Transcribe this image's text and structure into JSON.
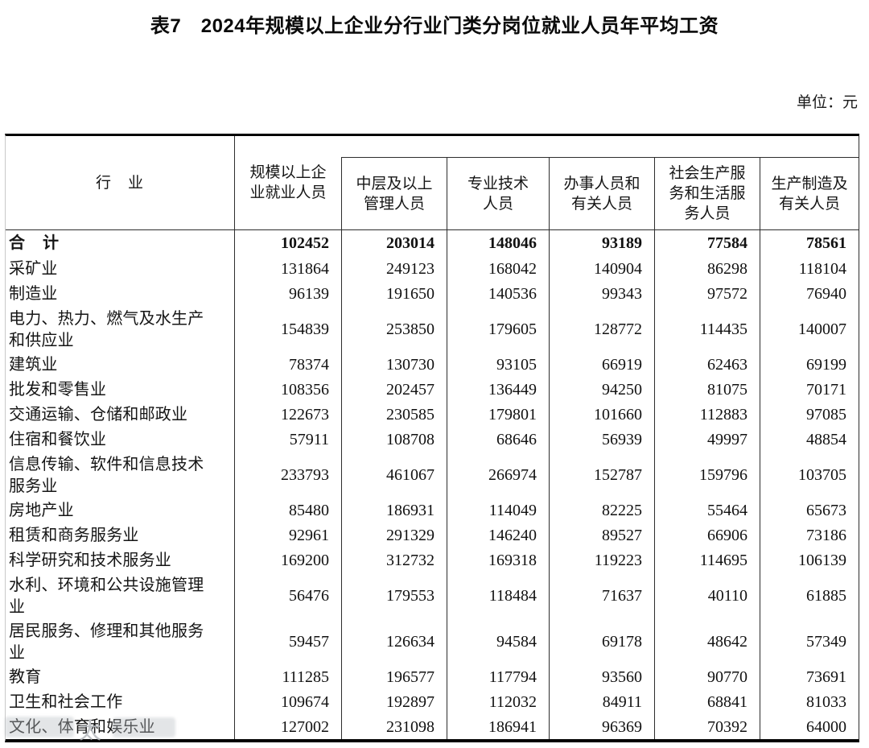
{
  "title": "表7　2024年规模以上企业分行业门类分岗位就业人员年平均工资",
  "unit_label": "单位：元",
  "watermark_glyph": "太",
  "table": {
    "industry_header": "行　业",
    "columns": [
      "规模以上企\n业就业人员",
      "中层及以上\n管理人员",
      "专业技术\n人员",
      "办事人员和\n有关人员",
      "社会生产服\n务和生活服\n务人员",
      "生产制造及\n有关人员"
    ],
    "rows": [
      {
        "industry": "合　计",
        "bold": true,
        "values": [
          "102452",
          "203014",
          "148046",
          "93189",
          "77584",
          "78561"
        ]
      },
      {
        "industry": "采矿业",
        "bold": false,
        "values": [
          "131864",
          "249123",
          "168042",
          "140904",
          "86298",
          "118104"
        ]
      },
      {
        "industry": "制造业",
        "bold": false,
        "values": [
          "96139",
          "191650",
          "140536",
          "99343",
          "97572",
          "76940"
        ]
      },
      {
        "industry": "电力、热力、燃气及水生产\n和供应业",
        "bold": false,
        "values": [
          "154839",
          "253850",
          "179605",
          "128772",
          "114435",
          "140007"
        ]
      },
      {
        "industry": "建筑业",
        "bold": false,
        "values": [
          "78374",
          "130730",
          "93105",
          "66919",
          "62463",
          "69199"
        ]
      },
      {
        "industry": "批发和零售业",
        "bold": false,
        "values": [
          "108356",
          "202457",
          "136449",
          "94250",
          "81075",
          "70171"
        ]
      },
      {
        "industry": "交通运输、仓储和邮政业",
        "bold": false,
        "values": [
          "122673",
          "230585",
          "179801",
          "101660",
          "112883",
          "97085"
        ]
      },
      {
        "industry": "住宿和餐饮业",
        "bold": false,
        "values": [
          "57911",
          "108708",
          "68646",
          "56939",
          "49997",
          "48854"
        ]
      },
      {
        "industry": "信息传输、软件和信息技术\n服务业",
        "bold": false,
        "values": [
          "233793",
          "461067",
          "266974",
          "152787",
          "159796",
          "103705"
        ]
      },
      {
        "industry": "房地产业",
        "bold": false,
        "values": [
          "85480",
          "186931",
          "114049",
          "82225",
          "55464",
          "65673"
        ]
      },
      {
        "industry": "租赁和商务服务业",
        "bold": false,
        "values": [
          "92961",
          "291329",
          "146240",
          "89527",
          "66906",
          "73186"
        ]
      },
      {
        "industry": "科学研究和技术服务业",
        "bold": false,
        "values": [
          "169200",
          "312732",
          "169318",
          "119223",
          "114695",
          "106139"
        ]
      },
      {
        "industry": "水利、环境和公共设施管理\n业",
        "bold": false,
        "values": [
          "56476",
          "179553",
          "118484",
          "71637",
          "40110",
          "61885"
        ]
      },
      {
        "industry": "居民服务、修理和其他服务\n业",
        "bold": false,
        "values": [
          "59457",
          "126634",
          "94584",
          "69178",
          "48642",
          "57349"
        ]
      },
      {
        "industry": "教育",
        "bold": false,
        "values": [
          "111285",
          "196577",
          "117794",
          "93560",
          "90770",
          "73691"
        ]
      },
      {
        "industry": "卫生和社会工作",
        "bold": false,
        "values": [
          "109674",
          "192897",
          "112032",
          "84911",
          "68841",
          "81033"
        ]
      },
      {
        "industry": "文化、体育和娱乐业",
        "bold": false,
        "values": [
          "127002",
          "231098",
          "186941",
          "96369",
          "70392",
          "64000"
        ]
      }
    ]
  }
}
